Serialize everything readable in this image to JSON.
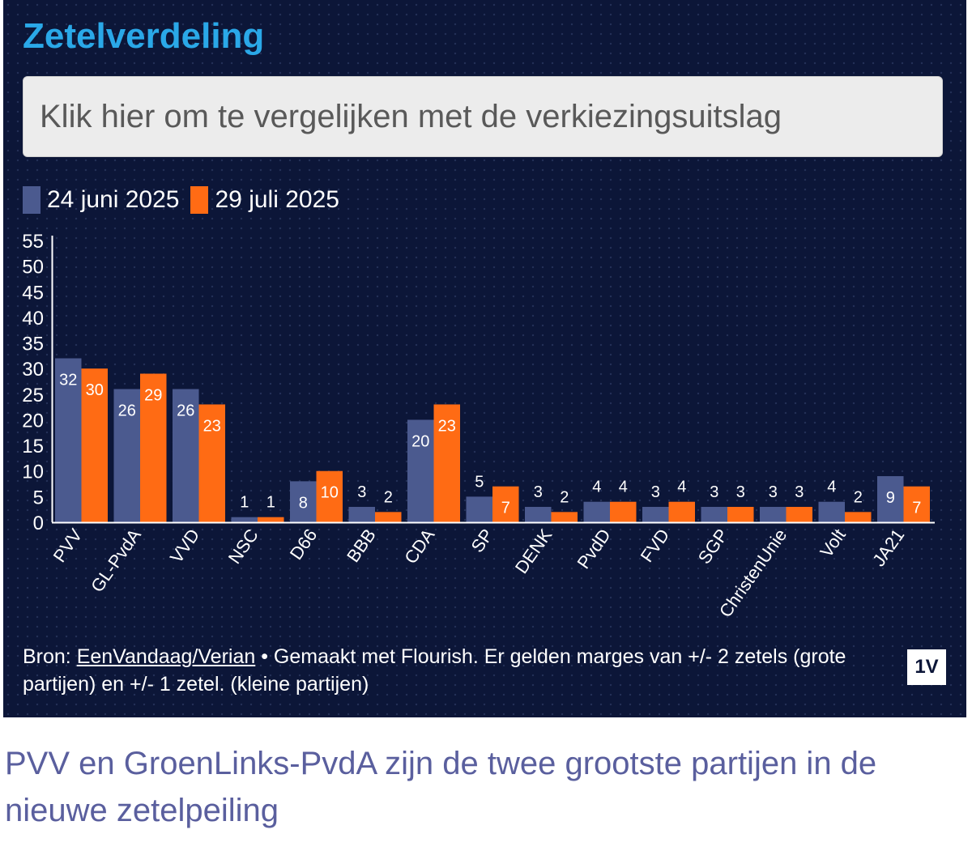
{
  "header": {
    "title": "Zetelverdeling"
  },
  "compare_button": {
    "label": "Klik hier om te vergelijken met de verkiezingsuitslag"
  },
  "colors": {
    "series_1": "#4b5a8f",
    "series_2": "#ff6b14",
    "title": "#2aa8e8",
    "background": "#0c1638"
  },
  "chart_data": {
    "type": "bar",
    "title": "Zetelverdeling",
    "xlabel": "",
    "ylabel": "",
    "ylim": [
      0,
      55
    ],
    "yticks": [
      0,
      5,
      10,
      15,
      20,
      25,
      30,
      35,
      40,
      45,
      50,
      55
    ],
    "legend_position": "top-left",
    "categories": [
      "PVV",
      "GL-PvdA",
      "VVD",
      "NSC",
      "D66",
      "BBB",
      "CDA",
      "SP",
      "DENK",
      "PvdD",
      "FVD",
      "SGP",
      "ChristenUnie",
      "Volt",
      "JA21"
    ],
    "series": [
      {
        "name": "24 juni 2025",
        "values": [
          32,
          26,
          26,
          1,
          8,
          3,
          20,
          5,
          3,
          4,
          3,
          3,
          3,
          4,
          9
        ]
      },
      {
        "name": "29 juli 2025",
        "values": [
          30,
          29,
          23,
          1,
          10,
          2,
          23,
          7,
          2,
          4,
          4,
          3,
          3,
          2,
          7
        ]
      }
    ]
  },
  "footer": {
    "source_prefix": "Bron: ",
    "source_link": "EenVandaag/Verian",
    "source_suffix": " • Gemaakt met Flourish. Er gelden marges van +/- 2 zetels (grote partijen) en +/- 1 zetel. (kleine partijen)",
    "logo": "1V"
  },
  "caption": "PVV en GroenLinks-PvdA zijn de twee grootste partijen in de nieuwe zetelpeiling"
}
